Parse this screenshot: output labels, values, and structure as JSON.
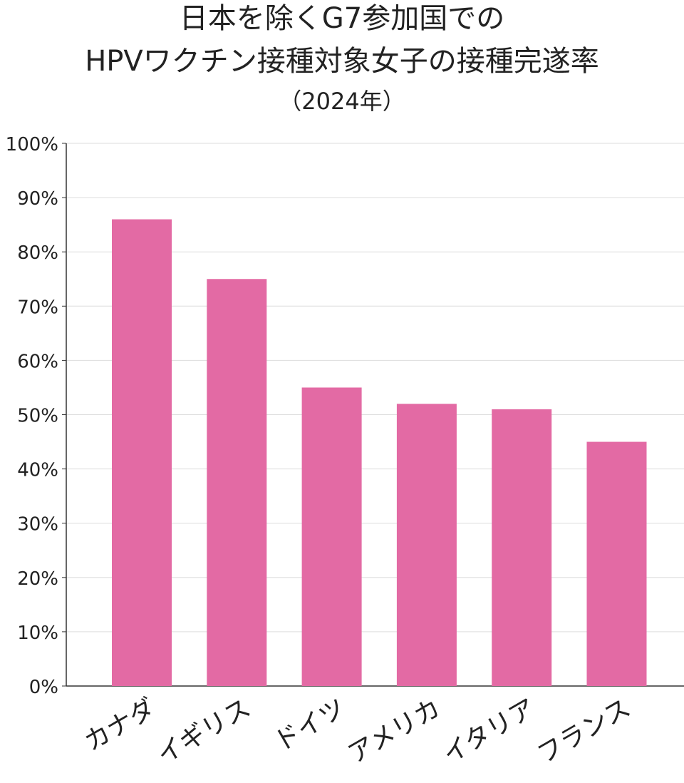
{
  "chart_data": {
    "type": "bar",
    "title": "日本を除くG7参加国での",
    "title_line2": "HPVワクチン接種対象女子の接種完遂率",
    "subtitle": "（2024年）",
    "categories": [
      "カナダ",
      "イギリス",
      "ドイツ",
      "アメリカ",
      "イタリア",
      "フランス"
    ],
    "values": [
      86,
      75,
      55,
      52,
      51,
      45
    ],
    "ylim": [
      0,
      100
    ],
    "yticks": [
      "0%",
      "10%",
      "20%",
      "30%",
      "40%",
      "50%",
      "60%",
      "70%",
      "80%",
      "90%",
      "100%"
    ],
    "grid": true,
    "bar_color": "#e36aa4"
  }
}
